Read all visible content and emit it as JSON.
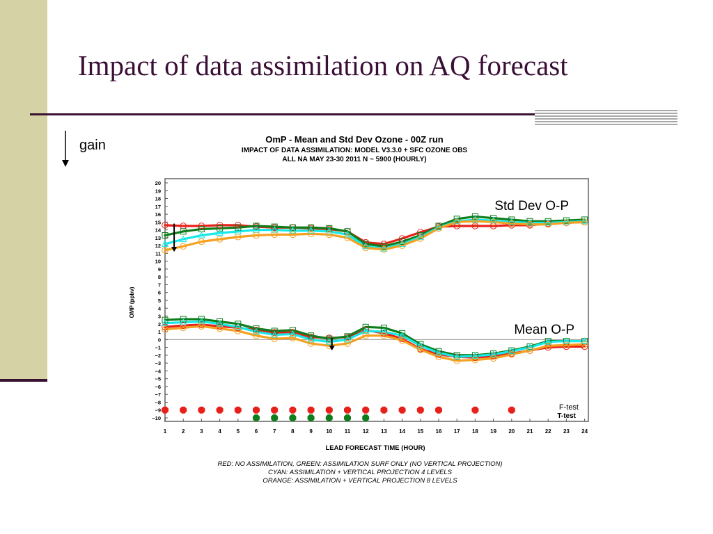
{
  "slide": {
    "title": "Impact of data assimilation on AQ forecast",
    "gain_label": "gain"
  },
  "chart_data": {
    "type": "line",
    "title": "OmP - Mean and Std Dev Ozone - 00Z run",
    "subtitle_lines": [
      "IMPACT OF DATA ASSIMILATION: MODEL V3.3.0 + SFC OZONE OBS",
      "ALL NA MAY 23-30 2011 N ~ 5900 (HOURLY)"
    ],
    "xlabel": "LEAD FORECAST TIME (HOUR)",
    "ylabel": "OMP (ppbv)",
    "xlim": [
      1,
      24
    ],
    "ylim": [
      -10,
      20
    ],
    "x": [
      1,
      2,
      3,
      4,
      5,
      6,
      7,
      8,
      9,
      10,
      11,
      12,
      13,
      14,
      15,
      16,
      17,
      18,
      19,
      20,
      21,
      22,
      23,
      24
    ],
    "annotations": {
      "std_dev": "Std Dev O-P",
      "mean": "Mean O-P",
      "f_test": "F-test",
      "t_test": "T-test"
    },
    "legend_lines": [
      "RED: NO ASSIMILATION, GREEN: ASSIMILATION SURF ONLY (NO VERTICAL PROJECTION)",
      "CYAN: ASSIMILATION + VERTICAL PROJECTION 4 LEVELS",
      "ORANGE: ASSIMILATION + VERTICAL PROJECTION 8 LEVELS"
    ],
    "series": [
      {
        "color": "#e8201a",
        "marker": "circle",
        "std": [
          14.6,
          14.5,
          14.5,
          14.6,
          14.6,
          14.4,
          14.3,
          14.3,
          14.2,
          14.1,
          13.8,
          12.4,
          12.2,
          12.9,
          13.7,
          14.4,
          14.5,
          14.5,
          14.5,
          14.6,
          14.6,
          14.8,
          14.9,
          15.0
        ],
        "mean": [
          1.6,
          1.8,
          1.9,
          1.7,
          1.5,
          1.2,
          0.9,
          0.9,
          0.3,
          0.2,
          0.3,
          1.2,
          0.8,
          0.1,
          -1.2,
          -1.9,
          -2.2,
          -2.3,
          -2.1,
          -1.8,
          -1.4,
          -1.0,
          -0.9,
          -0.9
        ]
      },
      {
        "color": "#0e7d1c",
        "marker": "square",
        "std": [
          13.3,
          13.8,
          14.1,
          14.2,
          14.3,
          14.5,
          14.4,
          14.3,
          14.3,
          14.2,
          13.8,
          12.2,
          11.9,
          12.5,
          13.3,
          14.5,
          15.4,
          15.7,
          15.5,
          15.3,
          15.1,
          15.1,
          15.2,
          15.3
        ],
        "mean": [
          2.5,
          2.6,
          2.6,
          2.3,
          2.0,
          1.4,
          1.1,
          1.2,
          0.5,
          0.1,
          0.4,
          1.6,
          1.5,
          0.8,
          -0.6,
          -1.5,
          -2.0,
          -2.0,
          -1.8,
          -1.4,
          -0.9,
          -0.2,
          -0.2,
          -0.2
        ]
      },
      {
        "color": "#18e8e8",
        "marker": "triangle",
        "std": [
          12.2,
          12.8,
          13.3,
          13.6,
          13.8,
          14.0,
          14.0,
          13.9,
          13.9,
          13.8,
          13.4,
          11.9,
          11.6,
          12.2,
          13.1,
          14.3,
          15.1,
          15.3,
          15.2,
          15.0,
          14.9,
          14.9,
          15.0,
          15.1
        ],
        "mean": [
          2.1,
          2.2,
          2.3,
          2.0,
          1.6,
          1.0,
          0.6,
          0.7,
          0.0,
          -0.3,
          0.0,
          1.1,
          1.0,
          0.5,
          -0.8,
          -1.7,
          -2.2,
          -2.1,
          -1.9,
          -1.5,
          -1.0,
          -0.3,
          -0.2,
          -0.2
        ]
      },
      {
        "color": "#f5a020",
        "marker": "circle",
        "std": [
          11.4,
          11.9,
          12.5,
          12.8,
          13.1,
          13.3,
          13.4,
          13.4,
          13.5,
          13.4,
          13.0,
          11.7,
          11.5,
          12.0,
          12.9,
          14.2,
          15.0,
          15.1,
          15.0,
          14.8,
          14.7,
          14.7,
          14.9,
          15.0
        ],
        "mean": [
          1.3,
          1.5,
          1.7,
          1.4,
          1.1,
          0.5,
          0.1,
          0.2,
          -0.5,
          -0.8,
          -0.5,
          0.5,
          0.5,
          -0.1,
          -1.3,
          -2.2,
          -2.7,
          -2.6,
          -2.4,
          -1.9,
          -1.4,
          -0.8,
          -0.7,
          -0.6
        ]
      }
    ],
    "f_test": {
      "color": "#e8201a",
      "level": -9,
      "x": [
        1,
        2,
        3,
        4,
        5,
        6,
        7,
        8,
        9,
        10,
        11,
        12,
        13,
        14,
        15,
        16,
        18,
        20
      ]
    },
    "t_test": {
      "color": "#0e7d1c",
      "level": -10,
      "x": [
        6,
        7,
        8,
        9,
        10,
        11,
        12
      ]
    },
    "gain_arrows": [
      {
        "x": 1.5,
        "y_from": 14.8,
        "y_to": 11.2
      },
      {
        "x": 10.15,
        "y_from": 0.2,
        "y_to": -1.4
      }
    ]
  }
}
